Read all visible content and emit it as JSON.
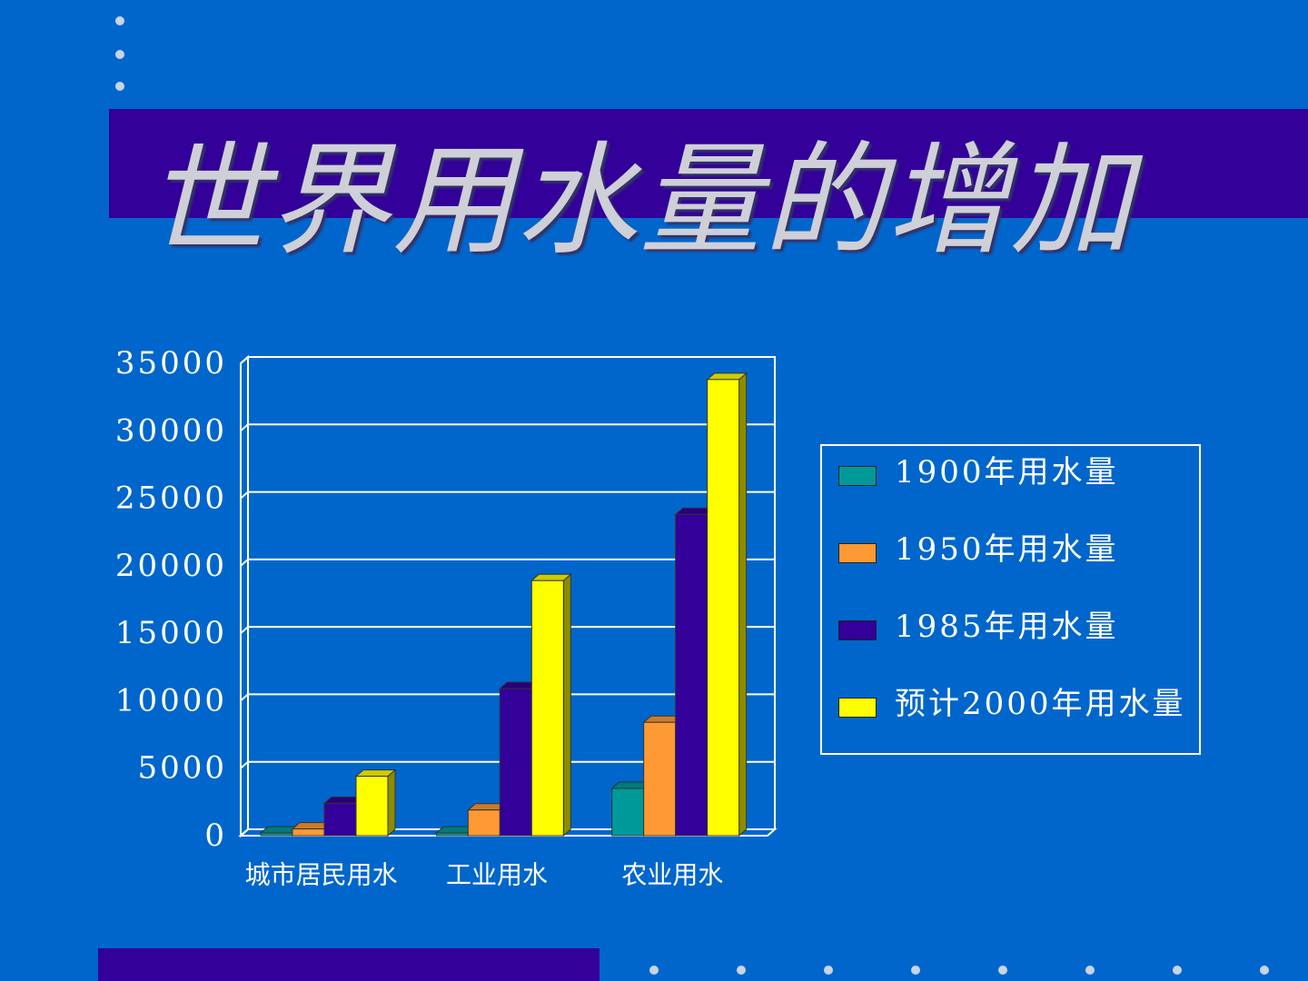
{
  "chart_data": {
    "type": "bar3d",
    "title": "世界用水量的增加",
    "categories": [
      "城市居民用水",
      "工业用水",
      "农业用水"
    ],
    "series": [
      {
        "name": "1900年用水量",
        "color": "#009999",
        "values": [
          200,
          200,
          3500
        ]
      },
      {
        "name": "1950年用水量",
        "color": "#ff9933",
        "values": [
          500,
          1900,
          8400
        ]
      },
      {
        "name": "1985年用水量",
        "color": "#330099",
        "values": [
          2400,
          10900,
          23800
        ]
      },
      {
        "name": "预计2000年用水量",
        "color": "#ffff00",
        "values": [
          4400,
          18900,
          33800
        ]
      }
    ],
    "ylim": [
      0,
      35000
    ],
    "yticks": [
      0,
      5000,
      10000,
      15000,
      20000,
      25000,
      30000,
      35000
    ],
    "grid": true,
    "legend": "right"
  }
}
